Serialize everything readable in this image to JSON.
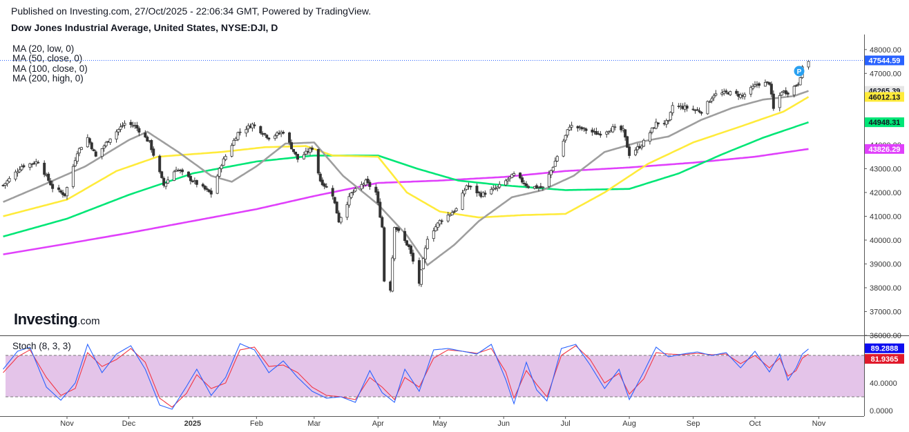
{
  "header": {
    "published": "Published on Investing.com, 27/Oct/2025 - 22:06:34 GMT, Powered by TradingView.",
    "title": "Dow Jones Industrial Average, United States, NYSE:DJI, D"
  },
  "legend": {
    "items": [
      "MA (20, low, 0)",
      "MA (50, close, 0)",
      "MA (100, close, 0)",
      "MA (200, high, 0)"
    ]
  },
  "logo": {
    "main": "Investing",
    "suffix": ".com"
  },
  "stoch": {
    "label": "Stoch (8, 3, 3)"
  },
  "chart_data": {
    "type": "candlestick",
    "title": "Dow Jones Industrial Average, United States, NYSE:DJI, D",
    "y_range": [
      36000,
      48400
    ],
    "y_ticks": [
      "48000.00",
      "47000.00",
      "46000.00",
      "45000.00",
      "44000.00",
      "43000.00",
      "42000.00",
      "41000.00",
      "40000.00",
      "39000.00",
      "38000.00",
      "37000.00",
      "36000.00"
    ],
    "x_ticks": [
      "Nov",
      "Dec",
      "2025",
      "Feb",
      "Mar",
      "Apr",
      "May",
      "Jun",
      "Jul",
      "Aug",
      "Sep",
      "Oct",
      "Nov"
    ],
    "x_tick_dates": [
      "2024-11-01",
      "2024-12-01",
      "2025-01-01",
      "2025-02-01",
      "2025-03-01",
      "2025-04-01",
      "2025-05-01",
      "2025-06-01",
      "2025-07-01",
      "2025-08-01",
      "2025-09-01",
      "2025-10-01",
      "2025-11-01"
    ],
    "last_price": 47544.59,
    "price_tags": [
      {
        "value": 47544.59,
        "label": "47544.59",
        "bg": "#2962ff",
        "fg": "#ffffff"
      },
      {
        "value": 46265.39,
        "label": "46265.39",
        "bg": "#e6e6e6",
        "fg": "#131722"
      },
      {
        "value": 46012.13,
        "label": "46012.13",
        "bg": "#ffeb3b",
        "fg": "#131722"
      },
      {
        "value": 44948.31,
        "label": "44948.31",
        "bg": "#00e676",
        "fg": "#131722"
      },
      {
        "value": 43826.29,
        "label": "43826.29",
        "bg": "#e040fb",
        "fg": "#ffffff"
      }
    ],
    "ohlc_anchors": [
      [
        "2024-10-01",
        42300
      ],
      [
        "2024-10-10",
        43100
      ],
      [
        "2024-10-18",
        43300
      ],
      [
        "2024-10-25",
        42200
      ],
      [
        "2024-10-31",
        41900
      ],
      [
        "2024-11-06",
        43700
      ],
      [
        "2024-11-11",
        44300
      ],
      [
        "2024-11-15",
        43500
      ],
      [
        "2024-11-22",
        44300
      ],
      [
        "2024-11-29",
        44900
      ],
      [
        "2024-12-04",
        44800
      ],
      [
        "2024-12-11",
        44100
      ],
      [
        "2024-12-18",
        42300
      ],
      [
        "2024-12-24",
        43000
      ],
      [
        "2024-12-31",
        42550
      ],
      [
        "2025-01-10",
        41950
      ],
      [
        "2025-01-15",
        43200
      ],
      [
        "2025-01-23",
        44500
      ],
      [
        "2025-01-30",
        44850
      ],
      [
        "2025-02-07",
        44300
      ],
      [
        "2025-02-14",
        44550
      ],
      [
        "2025-02-21",
        43400
      ],
      [
        "2025-02-28",
        43850
      ],
      [
        "2025-03-04",
        42500
      ],
      [
        "2025-03-10",
        41900
      ],
      [
        "2025-03-13",
        40800
      ],
      [
        "2025-03-19",
        41950
      ],
      [
        "2025-03-26",
        42450
      ],
      [
        "2025-03-31",
        42000
      ],
      [
        "2025-04-03",
        40550
      ],
      [
        "2025-04-04",
        38300
      ],
      [
        "2025-04-07",
        37950
      ],
      [
        "2025-04-09",
        40600
      ],
      [
        "2025-04-16",
        39700
      ],
      [
        "2025-04-21",
        38200
      ],
      [
        "2025-04-25",
        40100
      ],
      [
        "2025-05-01",
        40800
      ],
      [
        "2025-05-09",
        41300
      ],
      [
        "2025-05-14",
        42300
      ],
      [
        "2025-05-21",
        41900
      ],
      [
        "2025-05-29",
        42200
      ],
      [
        "2025-06-06",
        42750
      ],
      [
        "2025-06-13",
        42250
      ],
      [
        "2025-06-20",
        42200
      ],
      [
        "2025-06-25",
        43100
      ],
      [
        "2025-07-03",
        44800
      ],
      [
        "2025-07-10",
        44650
      ],
      [
        "2025-07-17",
        44450
      ],
      [
        "2025-07-24",
        44700
      ],
      [
        "2025-07-29",
        44600
      ],
      [
        "2025-08-01",
        43600
      ],
      [
        "2025-08-07",
        44000
      ],
      [
        "2025-08-14",
        44900
      ],
      [
        "2025-08-20",
        44950
      ],
      [
        "2025-08-22",
        45650
      ],
      [
        "2025-08-29",
        45550
      ],
      [
        "2025-09-05",
        45400
      ],
      [
        "2025-09-11",
        46100
      ],
      [
        "2025-09-18",
        46200
      ],
      [
        "2025-09-25",
        46050
      ],
      [
        "2025-10-02",
        46550
      ],
      [
        "2025-10-08",
        46600
      ],
      [
        "2025-10-10",
        45500
      ],
      [
        "2025-10-14",
        46250
      ],
      [
        "2025-10-17",
        46200
      ],
      [
        "2025-10-22",
        46600
      ],
      [
        "2025-10-24",
        47200
      ],
      [
        "2025-10-27",
        47545
      ]
    ],
    "moving_averages": [
      {
        "name": "MA (20, low, 0)",
        "color": "#9e9e9e",
        "end": 46265.39,
        "anchors": [
          [
            "2024-10-01",
            41600
          ],
          [
            "2024-10-20",
            42300
          ],
          [
            "2024-11-10",
            43100
          ],
          [
            "2024-12-01",
            44200
          ],
          [
            "2024-12-10",
            44550
          ],
          [
            "2024-12-25",
            43700
          ],
          [
            "2025-01-10",
            42700
          ],
          [
            "2025-01-20",
            42450
          ],
          [
            "2025-02-01",
            43100
          ],
          [
            "2025-02-15",
            44050
          ],
          [
            "2025-03-01",
            44100
          ],
          [
            "2025-03-15",
            42700
          ],
          [
            "2025-04-01",
            41500
          ],
          [
            "2025-04-15",
            40200
          ],
          [
            "2025-04-25",
            38950
          ],
          [
            "2025-05-08",
            39800
          ],
          [
            "2025-05-20",
            40800
          ],
          [
            "2025-06-05",
            41800
          ],
          [
            "2025-06-20",
            42100
          ],
          [
            "2025-07-05",
            42700
          ],
          [
            "2025-07-20",
            43700
          ],
          [
            "2025-08-05",
            44100
          ],
          [
            "2025-08-20",
            44350
          ],
          [
            "2025-09-05",
            45050
          ],
          [
            "2025-09-20",
            45550
          ],
          [
            "2025-10-05",
            45900
          ],
          [
            "2025-10-20",
            46050
          ],
          [
            "2025-10-27",
            46265
          ]
        ]
      },
      {
        "name": "MA (50, close, 0)",
        "color": "#ffeb3b",
        "end": 46012.13,
        "anchors": [
          [
            "2024-10-01",
            41000
          ],
          [
            "2024-11-01",
            41700
          ],
          [
            "2024-11-25",
            42900
          ],
          [
            "2024-12-15",
            43500
          ],
          [
            "2025-01-15",
            43700
          ],
          [
            "2025-02-05",
            43900
          ],
          [
            "2025-02-25",
            43950
          ],
          [
            "2025-03-10",
            43550
          ],
          [
            "2025-04-01",
            43500
          ],
          [
            "2025-04-15",
            42000
          ],
          [
            "2025-05-01",
            41200
          ],
          [
            "2025-05-20",
            40950
          ],
          [
            "2025-06-10",
            41050
          ],
          [
            "2025-07-01",
            41100
          ],
          [
            "2025-07-20",
            42000
          ],
          [
            "2025-08-10",
            43200
          ],
          [
            "2025-09-01",
            44100
          ],
          [
            "2025-09-25",
            44800
          ],
          [
            "2025-10-15",
            45400
          ],
          [
            "2025-10-27",
            46012
          ]
        ]
      },
      {
        "name": "MA (100, close, 0)",
        "color": "#00e676",
        "end": 44948.31,
        "anchors": [
          [
            "2024-10-01",
            40150
          ],
          [
            "2024-11-01",
            40900
          ],
          [
            "2024-12-01",
            41900
          ],
          [
            "2025-01-01",
            42800
          ],
          [
            "2025-02-01",
            43300
          ],
          [
            "2025-03-01",
            43550
          ],
          [
            "2025-04-01",
            43550
          ],
          [
            "2025-04-20",
            43000
          ],
          [
            "2025-05-10",
            42500
          ],
          [
            "2025-06-01",
            42300
          ],
          [
            "2025-07-01",
            42100
          ],
          [
            "2025-08-01",
            42150
          ],
          [
            "2025-08-25",
            42800
          ],
          [
            "2025-09-15",
            43600
          ],
          [
            "2025-10-05",
            44300
          ],
          [
            "2025-10-27",
            44948
          ]
        ]
      },
      {
        "name": "MA (200, high, 0)",
        "color": "#e040fb",
        "end": 43826.29,
        "anchors": [
          [
            "2024-10-01",
            39400
          ],
          [
            "2024-11-01",
            39850
          ],
          [
            "2024-12-01",
            40300
          ],
          [
            "2025-01-01",
            40800
          ],
          [
            "2025-02-01",
            41300
          ],
          [
            "2025-03-01",
            41850
          ],
          [
            "2025-04-01",
            42400
          ],
          [
            "2025-05-01",
            42500
          ],
          [
            "2025-06-01",
            42650
          ],
          [
            "2025-07-01",
            42900
          ],
          [
            "2025-08-01",
            43050
          ],
          [
            "2025-09-01",
            43250
          ],
          [
            "2025-10-01",
            43500
          ],
          [
            "2025-10-27",
            43826
          ]
        ]
      }
    ],
    "stochastic": {
      "label": "Stoch (8, 3, 3)",
      "k_color": "#2962ff",
      "d_color": "#f23645",
      "y_range": [
        0,
        100
      ],
      "bands": [
        20,
        80
      ],
      "y_ticks": [
        "40.0000",
        "0.0000"
      ],
      "k_last": 89.2888,
      "d_last": 81.9365,
      "tags": [
        {
          "value": 89.2888,
          "label": "89.2888",
          "bg": "#0d0df0",
          "fg": "#ffffff"
        },
        {
          "value": 81.9365,
          "label": "81.9365",
          "bg": "#e0192b",
          "fg": "#ffffff"
        }
      ],
      "k_anchors": [
        [
          "2024-10-01",
          60
        ],
        [
          "2024-10-08",
          86
        ],
        [
          "2024-10-14",
          92
        ],
        [
          "2024-10-22",
          34
        ],
        [
          "2024-10-29",
          15
        ],
        [
          "2024-11-05",
          40
        ],
        [
          "2024-11-11",
          96
        ],
        [
          "2024-11-18",
          55
        ],
        [
          "2024-11-25",
          82
        ],
        [
          "2024-12-02",
          94
        ],
        [
          "2024-12-09",
          60
        ],
        [
          "2024-12-16",
          8
        ],
        [
          "2024-12-22",
          2
        ],
        [
          "2024-12-29",
          35
        ],
        [
          "2025-01-03",
          60
        ],
        [
          "2025-01-10",
          22
        ],
        [
          "2025-01-17",
          48
        ],
        [
          "2025-01-24",
          97
        ],
        [
          "2025-01-31",
          88
        ],
        [
          "2025-02-07",
          55
        ],
        [
          "2025-02-14",
          72
        ],
        [
          "2025-02-21",
          48
        ],
        [
          "2025-02-28",
          28
        ],
        [
          "2025-03-07",
          18
        ],
        [
          "2025-03-14",
          20
        ],
        [
          "2025-03-21",
          12
        ],
        [
          "2025-03-28",
          58
        ],
        [
          "2025-04-03",
          26
        ],
        [
          "2025-04-09",
          12
        ],
        [
          "2025-04-14",
          60
        ],
        [
          "2025-04-21",
          28
        ],
        [
          "2025-04-28",
          88
        ],
        [
          "2025-05-05",
          90
        ],
        [
          "2025-05-12",
          86
        ],
        [
          "2025-05-19",
          82
        ],
        [
          "2025-05-26",
          96
        ],
        [
          "2025-06-02",
          45
        ],
        [
          "2025-06-06",
          10
        ],
        [
          "2025-06-12",
          70
        ],
        [
          "2025-06-17",
          30
        ],
        [
          "2025-06-22",
          14
        ],
        [
          "2025-06-29",
          90
        ],
        [
          "2025-07-06",
          96
        ],
        [
          "2025-07-13",
          66
        ],
        [
          "2025-07-20",
          32
        ],
        [
          "2025-07-27",
          60
        ],
        [
          "2025-08-01",
          16
        ],
        [
          "2025-08-08",
          56
        ],
        [
          "2025-08-14",
          92
        ],
        [
          "2025-08-20",
          78
        ],
        [
          "2025-08-27",
          82
        ],
        [
          "2025-09-03",
          85
        ],
        [
          "2025-09-10",
          80
        ],
        [
          "2025-09-17",
          84
        ],
        [
          "2025-09-24",
          62
        ],
        [
          "2025-10-01",
          86
        ],
        [
          "2025-10-08",
          56
        ],
        [
          "2025-10-13",
          82
        ],
        [
          "2025-10-17",
          44
        ],
        [
          "2025-10-21",
          62
        ],
        [
          "2025-10-24",
          82
        ],
        [
          "2025-10-27",
          89.29
        ]
      ],
      "d_anchors": [
        [
          "2024-10-01",
          55
        ],
        [
          "2024-10-08",
          78
        ],
        [
          "2024-10-14",
          88
        ],
        [
          "2024-10-22",
          48
        ],
        [
          "2024-10-29",
          22
        ],
        [
          "2024-11-05",
          32
        ],
        [
          "2024-11-11",
          84
        ],
        [
          "2024-11-18",
          64
        ],
        [
          "2024-11-25",
          74
        ],
        [
          "2024-12-02",
          90
        ],
        [
          "2024-12-09",
          70
        ],
        [
          "2024-12-16",
          18
        ],
        [
          "2024-12-22",
          5
        ],
        [
          "2024-12-29",
          25
        ],
        [
          "2025-01-03",
          52
        ],
        [
          "2025-01-10",
          32
        ],
        [
          "2025-01-17",
          40
        ],
        [
          "2025-01-24",
          88
        ],
        [
          "2025-01-31",
          92
        ],
        [
          "2025-02-07",
          64
        ],
        [
          "2025-02-14",
          66
        ],
        [
          "2025-02-21",
          55
        ],
        [
          "2025-02-28",
          34
        ],
        [
          "2025-03-07",
          22
        ],
        [
          "2025-03-14",
          20
        ],
        [
          "2025-03-21",
          16
        ],
        [
          "2025-03-28",
          48
        ],
        [
          "2025-04-03",
          34
        ],
        [
          "2025-04-09",
          16
        ],
        [
          "2025-04-14",
          48
        ],
        [
          "2025-04-21",
          34
        ],
        [
          "2025-04-28",
          76
        ],
        [
          "2025-05-05",
          88
        ],
        [
          "2025-05-12",
          86
        ],
        [
          "2025-05-19",
          83
        ],
        [
          "2025-05-26",
          90
        ],
        [
          "2025-06-02",
          56
        ],
        [
          "2025-06-06",
          18
        ],
        [
          "2025-06-12",
          58
        ],
        [
          "2025-06-17",
          38
        ],
        [
          "2025-06-22",
          20
        ],
        [
          "2025-06-29",
          80
        ],
        [
          "2025-07-06",
          94
        ],
        [
          "2025-07-13",
          74
        ],
        [
          "2025-07-20",
          40
        ],
        [
          "2025-07-27",
          54
        ],
        [
          "2025-08-01",
          24
        ],
        [
          "2025-08-08",
          46
        ],
        [
          "2025-08-14",
          84
        ],
        [
          "2025-08-20",
          82
        ],
        [
          "2025-08-27",
          81
        ],
        [
          "2025-09-03",
          83
        ],
        [
          "2025-09-10",
          81
        ],
        [
          "2025-09-17",
          82
        ],
        [
          "2025-09-24",
          68
        ],
        [
          "2025-10-01",
          80
        ],
        [
          "2025-10-08",
          62
        ],
        [
          "2025-10-13",
          76
        ],
        [
          "2025-10-17",
          50
        ],
        [
          "2025-10-21",
          58
        ],
        [
          "2025-10-24",
          76
        ],
        [
          "2025-10-27",
          81.94
        ]
      ]
    }
  }
}
